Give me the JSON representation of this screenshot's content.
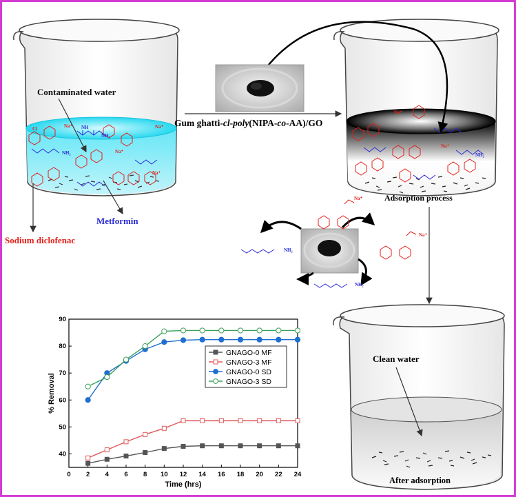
{
  "labels": {
    "contaminated_water": "Contaminated water",
    "process_prefix": "Gum ghatti-",
    "process_italic1": "cl",
    "process_dash1": "-",
    "process_italic2": "poly",
    "process_mid": "(NIPA-",
    "process_italic3": "co",
    "process_suffix": "-AA)/GO",
    "adsorption_process": "Adsorption process",
    "metformin": "Metformin",
    "sodium_diclofenac": "Sodium diclofenac",
    "clean_water": "Clean water",
    "after_adsorption": "After adsorption"
  },
  "chem": {
    "na": "Na⁺",
    "cl": "Cl",
    "nh": "NH",
    "nh2": "NH₂",
    "n": "N",
    "h": "H"
  },
  "colors": {
    "frame": "#d33bd3",
    "diclofenac": "#e0201a",
    "metformin": "#2b2bd6",
    "water": "#27d8ef",
    "metformin_label": "#2b2bd6",
    "sodium_label": "#e0201a"
  },
  "chart_data": {
    "type": "line",
    "xlabel": "Time (hrs)",
    "ylabel": "% Removal",
    "x": [
      2,
      4,
      6,
      8,
      10,
      12,
      14,
      16,
      18,
      20,
      22,
      24
    ],
    "xlim": [
      0,
      24
    ],
    "ylim": [
      35,
      90
    ],
    "xticks": [
      0,
      2,
      4,
      6,
      8,
      10,
      12,
      14,
      16,
      18,
      20,
      22,
      24
    ],
    "yticks": [
      40,
      50,
      60,
      70,
      80,
      90
    ],
    "legend_position": "center-right",
    "grid": false,
    "series": [
      {
        "name": "GNAGO-0 MF",
        "color": "#555555",
        "marker": "square-filled",
        "values": [
          36.5,
          38,
          39.2,
          40.5,
          42,
          42.8,
          43,
          43,
          43,
          43,
          43,
          43
        ]
      },
      {
        "name": "GNAGO-3 MF",
        "color": "#e05a5a",
        "marker": "square-open",
        "values": [
          38.5,
          41.5,
          44.5,
          47.2,
          49.5,
          52.3,
          52.3,
          52.3,
          52.3,
          52.3,
          52.3,
          52.3
        ]
      },
      {
        "name": "GNAGO-0 SD",
        "color": "#1f6fd1",
        "marker": "circle-filled",
        "values": [
          60,
          70,
          74.5,
          78.8,
          81.5,
          82.2,
          82.4,
          82.4,
          82.4,
          82.4,
          82.4,
          82.4
        ]
      },
      {
        "name": "GNAGO-3 SD",
        "color": "#3aa15a",
        "marker": "circle-open",
        "values": [
          65,
          68.5,
          75,
          80,
          85.5,
          85.8,
          85.8,
          85.8,
          85.8,
          85.8,
          85.8,
          85.8
        ]
      }
    ]
  }
}
